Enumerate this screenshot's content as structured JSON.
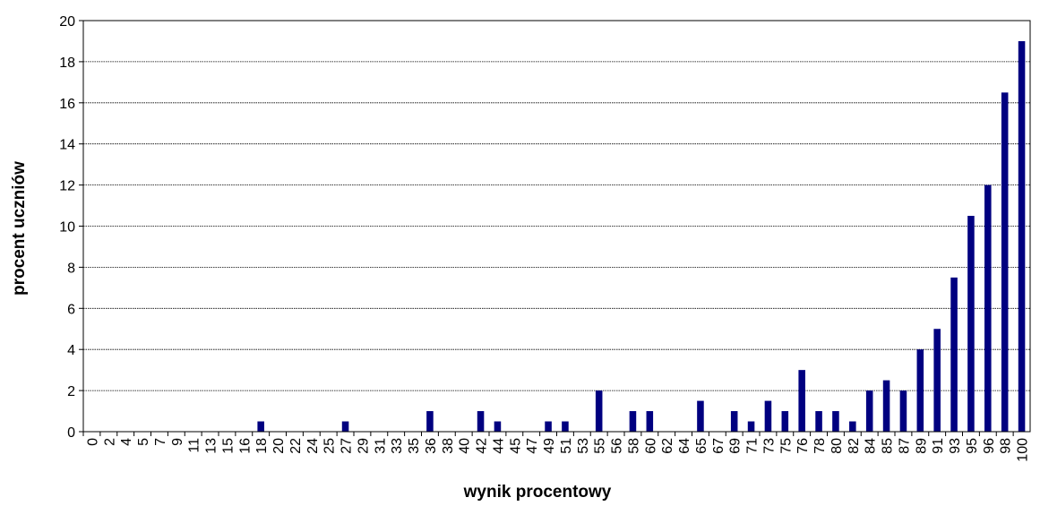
{
  "chart_data": {
    "type": "bar",
    "title": "",
    "xlabel": "wynik procentowy",
    "ylabel": "procent uczniów",
    "ylim": [
      0,
      20
    ],
    "yticks": [
      0,
      2,
      4,
      6,
      8,
      10,
      12,
      14,
      16,
      18,
      20
    ],
    "grid": true,
    "bar_color": "#000080",
    "categories": [
      "0",
      "2",
      "4",
      "5",
      "7",
      "9",
      "11",
      "13",
      "15",
      "16",
      "18",
      "20",
      "22",
      "24",
      "25",
      "27",
      "29",
      "31",
      "33",
      "35",
      "36",
      "38",
      "40",
      "42",
      "44",
      "45",
      "47",
      "49",
      "51",
      "53",
      "55",
      "56",
      "58",
      "60",
      "62",
      "64",
      "65",
      "67",
      "69",
      "71",
      "73",
      "75",
      "76",
      "78",
      "80",
      "82",
      "84",
      "85",
      "87",
      "89",
      "91",
      "93",
      "95",
      "96",
      "98",
      "100"
    ],
    "values": [
      0,
      0,
      0,
      0,
      0,
      0,
      0,
      0,
      0,
      0,
      0.5,
      0,
      0,
      0,
      0,
      0.5,
      0,
      0,
      0,
      0,
      1,
      0,
      0,
      1,
      0.5,
      0,
      0,
      0.5,
      0.5,
      0,
      2,
      0,
      1,
      1,
      0,
      0,
      1.5,
      0,
      1,
      0.5,
      1.5,
      1,
      3,
      1,
      1,
      0.5,
      2,
      2.5,
      2,
      4,
      5,
      7.5,
      10.5,
      12,
      16.5,
      19
    ]
  }
}
